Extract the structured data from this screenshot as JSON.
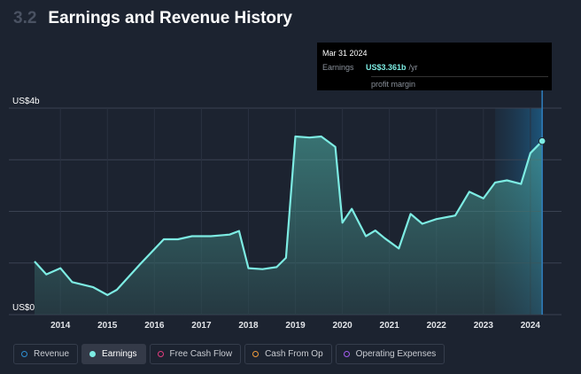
{
  "header": {
    "section_number": "3.2",
    "title": "Earnings and Revenue History"
  },
  "tooltip": {
    "date": "Mar 31 2024",
    "label": "Earnings",
    "value": "US$3.361b",
    "unit": "/yr",
    "sub": "profit margin"
  },
  "legend": [
    {
      "label": "Revenue",
      "color": "#2f8fd1",
      "active": false
    },
    {
      "label": "Earnings",
      "color": "#7dece3",
      "active": true
    },
    {
      "label": "Free Cash Flow",
      "color": "#e23c7e",
      "active": false
    },
    {
      "label": "Cash From Op",
      "color": "#f09b3c",
      "active": false
    },
    {
      "label": "Operating Expenses",
      "color": "#a35cf0",
      "active": false
    }
  ],
  "chart_data": {
    "type": "area",
    "series": [
      {
        "name": "Earnings",
        "color": "#7dece3",
        "points": [
          [
            2013.45,
            1.03
          ],
          [
            2013.7,
            0.78
          ],
          [
            2014.0,
            0.9
          ],
          [
            2014.25,
            0.63
          ],
          [
            2014.7,
            0.53
          ],
          [
            2015.0,
            0.38
          ],
          [
            2015.2,
            0.48
          ],
          [
            2015.7,
            0.98
          ],
          [
            2016.2,
            1.46
          ],
          [
            2016.5,
            1.46
          ],
          [
            2016.8,
            1.52
          ],
          [
            2017.2,
            1.52
          ],
          [
            2017.6,
            1.55
          ],
          [
            2017.8,
            1.62
          ],
          [
            2018.0,
            0.9
          ],
          [
            2018.3,
            0.88
          ],
          [
            2018.6,
            0.92
          ],
          [
            2018.8,
            1.1
          ],
          [
            2019.0,
            3.45
          ],
          [
            2019.3,
            3.43
          ],
          [
            2019.55,
            3.45
          ],
          [
            2019.85,
            3.25
          ],
          [
            2020.0,
            1.78
          ],
          [
            2020.2,
            2.05
          ],
          [
            2020.5,
            1.52
          ],
          [
            2020.7,
            1.63
          ],
          [
            2020.9,
            1.48
          ],
          [
            2021.2,
            1.28
          ],
          [
            2021.45,
            1.95
          ],
          [
            2021.7,
            1.76
          ],
          [
            2022.0,
            1.85
          ],
          [
            2022.4,
            1.92
          ],
          [
            2022.7,
            2.38
          ],
          [
            2023.0,
            2.25
          ],
          [
            2023.25,
            2.56
          ],
          [
            2023.5,
            2.6
          ],
          [
            2023.8,
            2.53
          ],
          [
            2024.0,
            3.13
          ],
          [
            2024.25,
            3.361
          ]
        ]
      }
    ],
    "ylim": [
      0,
      4
    ],
    "y_tick_labels": [
      {
        "value": 4,
        "label": "US$4b"
      },
      {
        "value": 0,
        "label": "US$0"
      }
    ],
    "xlim": [
      2013.45,
      2024.85
    ],
    "x_tick_labels": [
      "2014",
      "2015",
      "2016",
      "2017",
      "2018",
      "2019",
      "2020",
      "2021",
      "2022",
      "2023",
      "2024"
    ],
    "forecast_from": 2023.25,
    "highlight_x": 2024.25,
    "grid": true
  }
}
